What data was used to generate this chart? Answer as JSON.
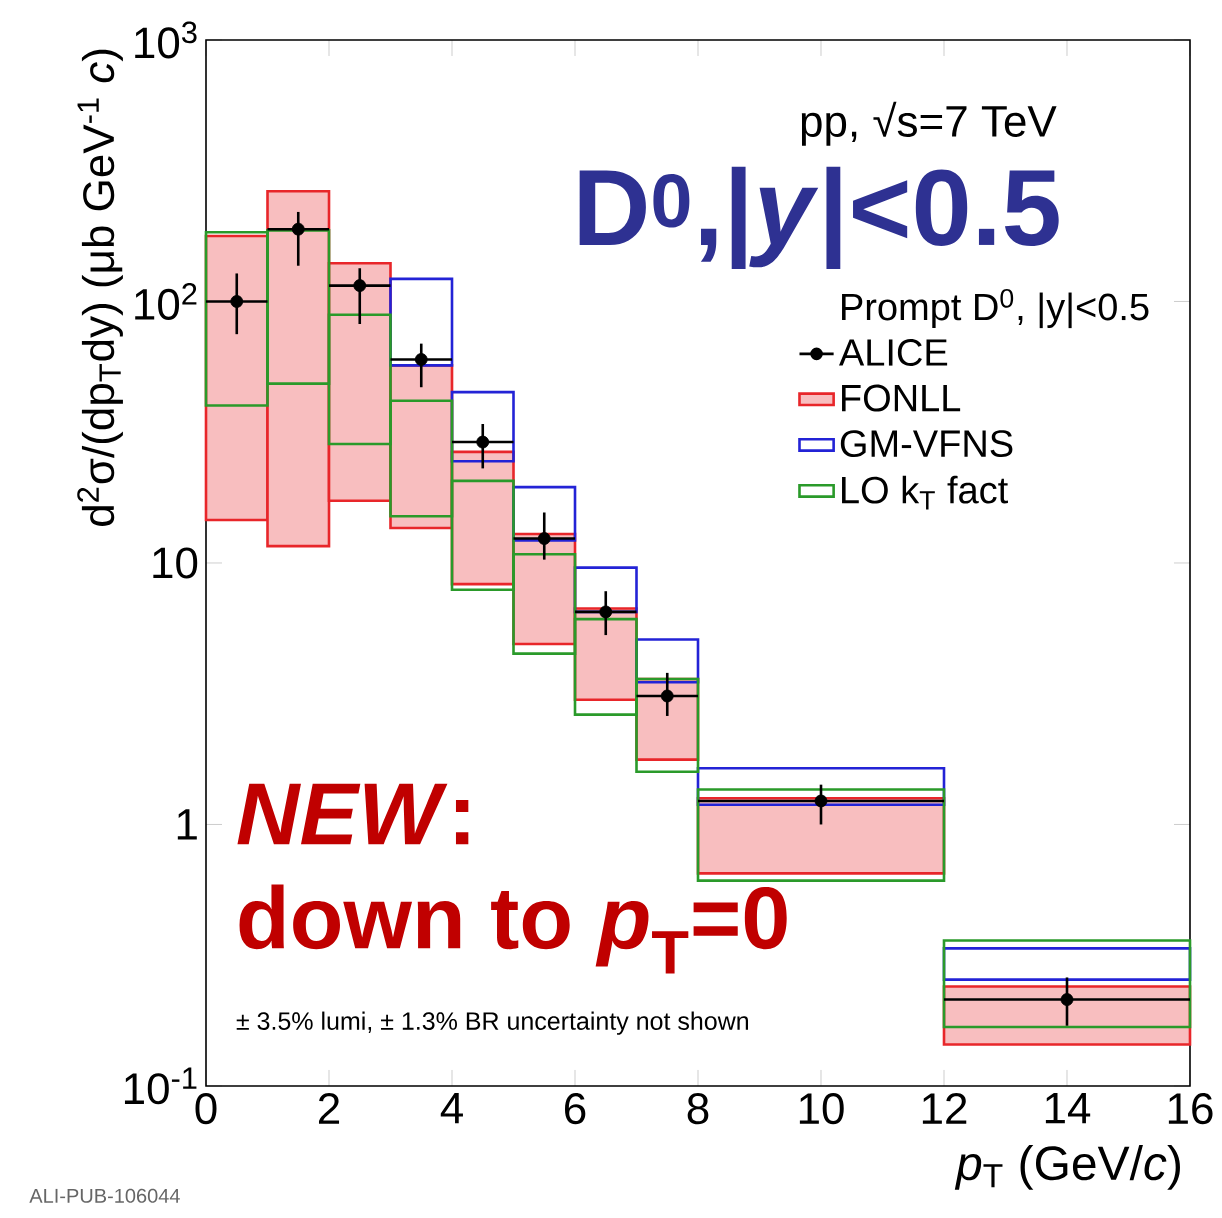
{
  "chart_data": {
    "type": "scatter",
    "xlabel": "*p*$_{T}$ (GeV/*c*)",
    "ylabel": "d$^{2}$σ/(dp$_{T}$dy) (μb GeV$^{-1}$ *c*)",
    "legend_title": "Prompt D$^{0}$, |y|<0.5",
    "annotations": [
      "pp, √s=7 TeV",
      "D$^{0}$,|*y*|<0.5",
      "*NEW*:",
      "down to *p*$_{T}$=0",
      "± 3.5% lumi, ± 1.3% BR uncertainty not shown",
      "ALI-PUB-106044"
    ],
    "xlim": [
      0,
      16
    ],
    "ylim": [
      0.1,
      1000
    ],
    "xticks": [
      0,
      2,
      4,
      6,
      8,
      10,
      12,
      14,
      16
    ],
    "yticks": [
      {
        "value": 0.1,
        "label": "10$^{-1}$"
      },
      1,
      10,
      {
        "value": 100,
        "label": "10$^{2}$"
      },
      {
        "value": 1000,
        "label": "10$^{3}$"
      }
    ],
    "log": "y",
    "legend": "right",
    "series": [
      {
        "name": "ALICE",
        "color": "#000000",
        "marker": "circle",
        "x": [
          0.5,
          1.5,
          2.5,
          3.5,
          4.5,
          5.5,
          6.5,
          7.5,
          10,
          14
        ],
        "values": [
          100,
          189,
          115,
          60,
          29,
          12.4,
          6.5,
          3.1,
          1.23,
          0.214
        ],
        "errors": [
          [
            75,
            128
          ],
          [
            137,
            220
          ],
          [
            82,
            134
          ],
          [
            47,
            69
          ],
          [
            23,
            34
          ],
          [
            10.3,
            15.6
          ],
          [
            5.3,
            7.8
          ],
          [
            2.6,
            3.8
          ],
          [
            1.0,
            1.42
          ],
          [
            0.17,
            0.26
          ]
        ],
        "xerrors": [
          0.5,
          0.5,
          0.5,
          0.5,
          0.5,
          0.5,
          0.5,
          0.5,
          2,
          2
        ]
      },
      {
        "name": "FONLL",
        "type": "histogram",
        "color": "#e8262a",
        "bins": [
          0,
          1,
          2,
          3,
          4,
          5,
          6,
          7,
          8,
          12,
          16
        ],
        "base": [
          14.6,
          11.6,
          17.3,
          13.6,
          8.3,
          4.9,
          3.0,
          1.77,
          0.65,
          0.144
        ],
        "values": [
          163.4,
          252.4,
          122.7,
          43.4,
          18.3,
          8.0,
          3.7,
          1.83,
          0.61,
          0.096
        ]
      },
      {
        "name": "GM-VFNS",
        "type": "histogram",
        "color": "#2323d6",
        "bins": [
          3,
          4,
          5,
          6,
          7,
          8,
          12,
          16
        ],
        "base": [
          57,
          24.5,
          12.2,
          6.5,
          3.5,
          1.19,
          0.255
        ],
        "values": [
          65,
          20.5,
          7.3,
          3.1,
          1.6,
          0.45,
          0.081
        ]
      },
      {
        "name": "LO k$_{T}$ fact",
        "type": "histogram",
        "color": "#2a9a2a",
        "bins": [
          0,
          1,
          2,
          3,
          4,
          5,
          6,
          7,
          8,
          12,
          16
        ],
        "base": [
          40,
          48.5,
          28.5,
          15.1,
          7.9,
          4.5,
          2.63,
          1.59,
          0.61,
          0.168
        ],
        "values": [
          144,
          138.5,
          60.5,
          26.6,
          12.7,
          6.3,
          3.47,
          2.01,
          0.75,
          0.192
        ]
      }
    ]
  }
}
